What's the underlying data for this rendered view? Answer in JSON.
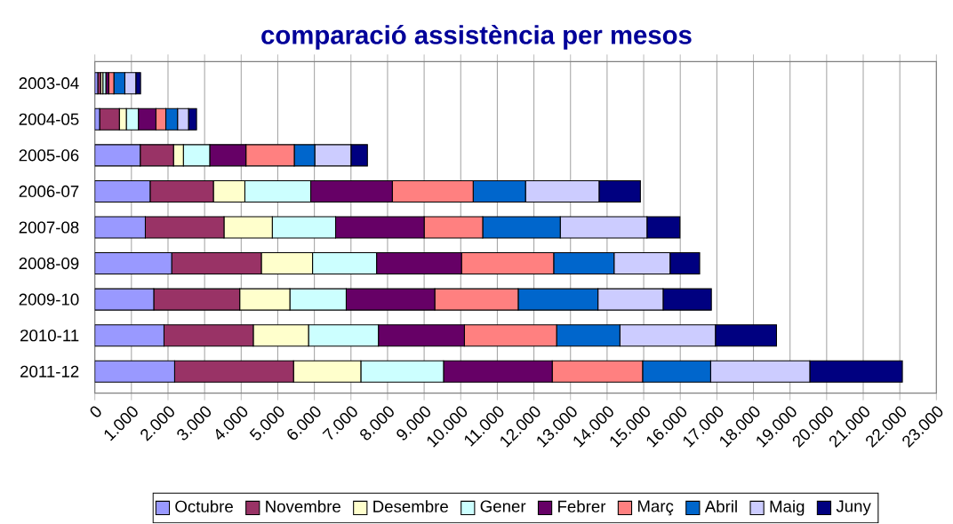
{
  "chart_data": {
    "type": "bar",
    "orientation": "horizontal",
    "stacked": true,
    "title": "comparació assistència per mesos",
    "categories": [
      "2003-04",
      "2004-05",
      "2005-06",
      "2006-07",
      "2007-08",
      "2008-09",
      "2009-10",
      "2010-11",
      "2011-12"
    ],
    "series": [
      {
        "name": "Octubre",
        "color": "#9999ff",
        "values": [
          80,
          130,
          1240,
          1510,
          1380,
          2100,
          1610,
          1890,
          2180
        ]
      },
      {
        "name": "Novembre",
        "color": "#993366",
        "values": [
          80,
          540,
          910,
          1730,
          2150,
          2450,
          2350,
          2440,
          3250
        ]
      },
      {
        "name": "Desembre",
        "color": "#ffffcc",
        "values": [
          60,
          190,
          270,
          860,
          1320,
          1400,
          1370,
          1510,
          1840
        ]
      },
      {
        "name": "Gener",
        "color": "#ccffff",
        "values": [
          80,
          330,
          720,
          1800,
          1730,
          1750,
          1540,
          1910,
          2260
        ]
      },
      {
        "name": "Febrer",
        "color": "#660066",
        "values": [
          80,
          480,
          990,
          2230,
          2420,
          2320,
          2420,
          2350,
          2970
        ]
      },
      {
        "name": "Març",
        "color": "#ff8080",
        "values": [
          140,
          270,
          1320,
          2210,
          1600,
          2520,
          2280,
          2520,
          2470
        ]
      },
      {
        "name": "Abril",
        "color": "#0066cc",
        "values": [
          300,
          320,
          560,
          1430,
          2120,
          1650,
          2180,
          1730,
          1860
        ]
      },
      {
        "name": "Maig",
        "color": "#ccccff",
        "values": [
          300,
          300,
          990,
          2010,
          2370,
          1530,
          1780,
          2610,
          2710
        ]
      },
      {
        "name": "Juny",
        "color": "#000080",
        "values": [
          130,
          220,
          450,
          1130,
          900,
          810,
          1320,
          1670,
          2530
        ]
      }
    ],
    "xlim": [
      0,
      23000
    ],
    "xticks": [
      0,
      {
        "value": 1000,
        "label": "1.000"
      },
      {
        "value": 2000,
        "label": "2.000"
      },
      {
        "value": 3000,
        "label": "3.000"
      },
      {
        "value": 4000,
        "label": "4.000"
      },
      {
        "value": 5000,
        "label": "5.000"
      },
      {
        "value": 6000,
        "label": "6.000"
      },
      {
        "value": 7000,
        "label": "7.000"
      },
      {
        "value": 8000,
        "label": "8.000"
      },
      {
        "value": 9000,
        "label": "9.000"
      },
      {
        "value": 10000,
        "label": "10.000"
      },
      {
        "value": 11000,
        "label": "11.000"
      },
      {
        "value": 12000,
        "label": "12.000"
      },
      {
        "value": 13000,
        "label": "13.000"
      },
      {
        "value": 14000,
        "label": "14.000"
      },
      {
        "value": 15000,
        "label": "15.000"
      },
      {
        "value": 16000,
        "label": "16.000"
      },
      {
        "value": 17000,
        "label": "17.000"
      },
      {
        "value": 18000,
        "label": "18.000"
      },
      {
        "value": 19000,
        "label": "19.000"
      },
      {
        "value": 20000,
        "label": "20.000"
      },
      {
        "value": 21000,
        "label": "21.000"
      },
      {
        "value": 22000,
        "label": "22.000"
      },
      {
        "value": 23000,
        "label": "23.000"
      }
    ],
    "grid": "x",
    "legend": "bottom"
  }
}
